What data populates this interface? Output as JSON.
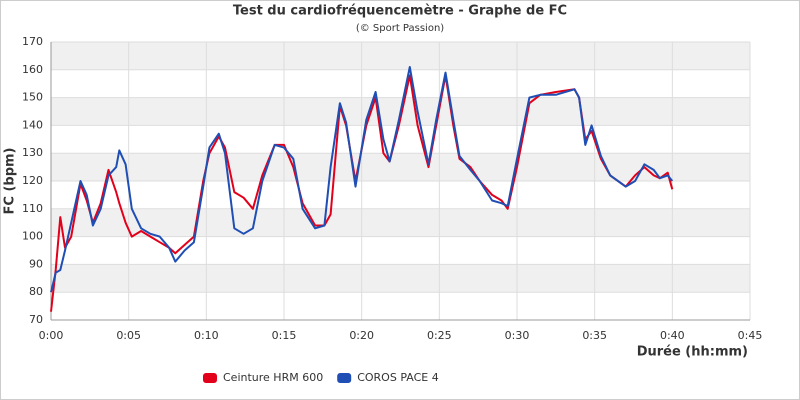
{
  "chart_data": {
    "type": "line",
    "title": "Test du cardiofréquencemètre - Graphe de FC",
    "subtitle": "(© Sport Passion)",
    "x_label": "Durée (hh:mm)",
    "y_label": "FC (bpm)",
    "x": [
      0,
      0.3,
      0.6,
      0.9,
      1.3,
      1.9,
      2.3,
      2.7,
      3.2,
      3.7,
      4.2,
      4.4,
      4.8,
      5.2,
      5.8,
      6.4,
      7.0,
      7.6,
      8.0,
      8.6,
      9.2,
      9.8,
      10.2,
      10.8,
      11.2,
      11.8,
      12.4,
      13.0,
      13.6,
      14.4,
      15.0,
      15.6,
      16.2,
      17.0,
      17.6,
      18.0,
      18.6,
      19.0,
      19.6,
      20.3,
      20.9,
      21.4,
      21.8,
      22.4,
      23.1,
      23.6,
      24.3,
      24.8,
      25.4,
      25.9,
      26.3,
      27.0,
      27.6,
      28.4,
      29.0,
      29.4,
      30.0,
      30.8,
      31.5,
      32.5,
      33.7,
      34.0,
      34.4,
      34.8,
      35.4,
      36.0,
      37.0,
      37.6,
      38.2,
      38.8,
      39.2,
      39.7,
      40.0
    ],
    "series": [
      {
        "name": "Ceinture HRM 600",
        "color": "#e3001b",
        "values": [
          73,
          88,
          107,
          96,
          100,
          119,
          113,
          105,
          112,
          124,
          116,
          112,
          105,
          100,
          102,
          100,
          98,
          96,
          94,
          97,
          100,
          120,
          130,
          136,
          132,
          116,
          114,
          110,
          122,
          133,
          133,
          125,
          112,
          104,
          104,
          108,
          147,
          140,
          120,
          140,
          150,
          130,
          127,
          140,
          158,
          140,
          125,
          140,
          158,
          140,
          128,
          125,
          120,
          115,
          113,
          110,
          125,
          148,
          151,
          152,
          153,
          150,
          135,
          138,
          128,
          122,
          118,
          122,
          125,
          122,
          121,
          123,
          117
        ]
      },
      {
        "name": "COROS PACE 4",
        "color": "#1f4fb4",
        "values": [
          80,
          87,
          88,
          95,
          105,
          120,
          115,
          104,
          110,
          122,
          125,
          131,
          126,
          110,
          103,
          101,
          100,
          96,
          91,
          95,
          98,
          118,
          132,
          137,
          130,
          103,
          101,
          103,
          120,
          133,
          132,
          128,
          110,
          103,
          104,
          125,
          148,
          141,
          118,
          142,
          152,
          135,
          127,
          142,
          161,
          145,
          126,
          142,
          159,
          142,
          129,
          124,
          120,
          113,
          112,
          111,
          128,
          150,
          151,
          151,
          153,
          150,
          133,
          140,
          129,
          122,
          118,
          120,
          126,
          124,
          121,
          122,
          120
        ]
      }
    ],
    "xlim": [
      0,
      45
    ],
    "xticks": [
      {
        "value": 0,
        "label": "0:00"
      },
      {
        "value": 5,
        "label": "0:05"
      },
      {
        "value": 10,
        "label": "0:10"
      },
      {
        "value": 15,
        "label": "0:15"
      },
      {
        "value": 20,
        "label": "0:20"
      },
      {
        "value": 25,
        "label": "0:25"
      },
      {
        "value": 30,
        "label": "0:30"
      },
      {
        "value": 35,
        "label": "0:35"
      },
      {
        "value": 40,
        "label": "0:40"
      },
      {
        "value": 45,
        "label": "0:45"
      }
    ],
    "ylim": [
      70,
      170
    ],
    "yticks": [
      70,
      80,
      90,
      100,
      110,
      120,
      130,
      140,
      150,
      160,
      170
    ],
    "grid": true,
    "legend": "bottom"
  }
}
